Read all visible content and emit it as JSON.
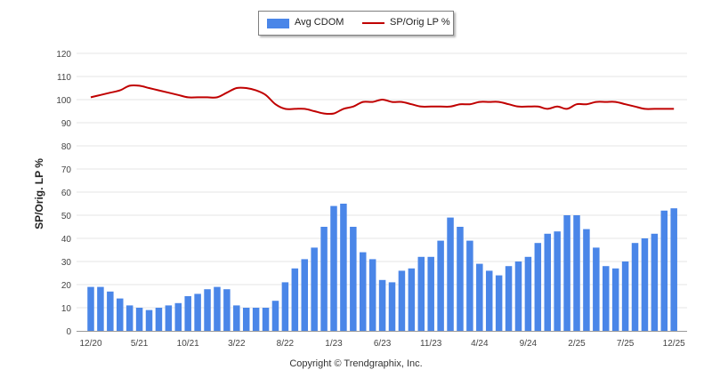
{
  "legend": {
    "bar_label": "Avg CDOM",
    "line_label": "SP/Orig LP %"
  },
  "footer": {
    "copyright": "Copyright © Trendgraphix, Inc."
  },
  "chart_data": {
    "type": "bar",
    "ylabel": "SP/Orig. LP %",
    "ylim": [
      0,
      120
    ],
    "yticks": [
      0,
      10,
      20,
      30,
      40,
      50,
      60,
      70,
      80,
      90,
      100,
      110,
      120
    ],
    "grid": true,
    "legend_position": "top-center",
    "x_tick_labels": [
      "12/20",
      "5/21",
      "10/21",
      "3/22",
      "8/22",
      "1/23",
      "6/23",
      "11/23",
      "4/24",
      "9/24",
      "2/25",
      "7/25",
      "12/25"
    ],
    "categories": [
      "12/20",
      "1/21",
      "2/21",
      "3/21",
      "4/21",
      "5/21",
      "6/21",
      "7/21",
      "8/21",
      "9/21",
      "10/21",
      "11/21",
      "12/21",
      "1/22",
      "2/22",
      "3/22",
      "4/22",
      "5/22",
      "6/22",
      "7/22",
      "8/22",
      "9/22",
      "10/22",
      "11/22",
      "12/22",
      "1/23",
      "2/23",
      "3/23",
      "4/23",
      "5/23",
      "6/23",
      "7/23",
      "8/23",
      "9/23",
      "10/23",
      "11/23",
      "12/23",
      "1/24",
      "2/24",
      "3/24",
      "4/24",
      "5/24",
      "6/24",
      "7/24",
      "8/24",
      "9/24",
      "10/24",
      "11/24",
      "12/24",
      "1/25",
      "2/25",
      "3/25",
      "4/25",
      "5/25",
      "6/25",
      "7/25",
      "8/25",
      "9/25",
      "10/25",
      "11/25",
      "12/25"
    ],
    "series": [
      {
        "name": "Avg CDOM",
        "type": "bar",
        "color": "#4a86e8",
        "values": [
          19,
          19,
          17,
          14,
          11,
          10,
          9,
          10,
          11,
          12,
          15,
          16,
          18,
          19,
          18,
          11,
          10,
          10,
          10,
          13,
          21,
          27,
          31,
          36,
          45,
          54,
          55,
          45,
          34,
          31,
          22,
          21,
          26,
          27,
          32,
          32,
          39,
          49,
          45,
          39,
          29,
          26,
          24,
          28,
          30,
          32,
          38,
          42,
          43,
          50,
          50,
          44,
          36,
          28,
          27,
          30,
          38,
          40,
          42,
          52,
          53
        ]
      },
      {
        "name": "SP/Orig LP %",
        "type": "line",
        "color": "#c00000",
        "values": [
          101,
          102,
          103,
          104,
          106,
          106,
          105,
          104,
          103,
          102,
          101,
          101,
          101,
          101,
          103,
          105,
          105,
          104,
          102,
          98,
          96,
          96,
          96,
          95,
          94,
          94,
          96,
          97,
          99,
          99,
          100,
          99,
          99,
          98,
          97,
          97,
          97,
          97,
          98,
          98,
          99,
          99,
          99,
          98,
          97,
          97,
          97,
          96,
          97,
          96,
          98,
          98,
          99,
          99,
          99,
          98,
          97,
          96,
          96,
          96,
          96
        ]
      }
    ]
  }
}
